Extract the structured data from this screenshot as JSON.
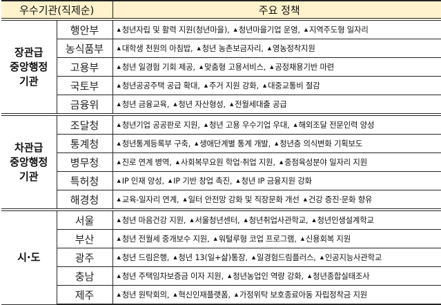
{
  "header": {
    "col1": "우수기관(직제순)",
    "col2": "주요 정책"
  },
  "bullet_icon": "triangle-up-icon",
  "groups": [
    {
      "category": [
        "장관급",
        "중앙행정",
        "기관"
      ],
      "rows": [
        {
          "agency": "행안부",
          "policies": [
            "청년자립 및 활력 지원(청년마을),",
            "청년마을기업 운영,",
            "지역주도형 일자리"
          ]
        },
        {
          "agency": "농식품부",
          "policies": [
            "대학생 천원의 아침밥,",
            "청년 농촌보금자리,",
            "영농정착지원"
          ]
        },
        {
          "agency": "고용부",
          "policies": [
            "청년 일경험 기회 제공,",
            "맞춤형 고용서비스,",
            "공정채용기반 마련"
          ]
        },
        {
          "agency": "국토부",
          "policies": [
            "청년공공주택 공급 확대,",
            "주거 지원 강화,",
            "대중교통비 절감"
          ]
        },
        {
          "agency": "금융위",
          "policies": [
            "청년 금융교육,",
            "청년 자산형성,",
            "전월세대출 공급"
          ]
        }
      ]
    },
    {
      "category": [
        "차관급",
        "중앙행정",
        "기관"
      ],
      "rows": [
        {
          "agency": "조달청",
          "policies": [
            "청년기업 공공판로 지원,",
            "청년 고용 우수기업 우대,",
            "해외조달 전문인력 양성"
          ]
        },
        {
          "agency": "통계청",
          "policies": [
            "청년통계등록부 구축,",
            "생애단계별 통계 개발,",
            "청년층 의식변화 기획보도"
          ]
        },
        {
          "agency": "병무청",
          "policies": [
            "진로 연계 병역,",
            "사회복무요원 학업·취업 지원,",
            "중점육성분야 일자리 지원"
          ]
        },
        {
          "agency": "특허청",
          "policies": [
            "IP 인재 양성,",
            "IP 기반 창업 촉진,",
            "청년 IP 금융지원 강화"
          ]
        },
        {
          "agency": "해경청",
          "policies": [
            "교육-일자리 연계,",
            "일터 안전망 강화 및 직장문화 개선",
            "건강 증진·문화 향유"
          ]
        }
      ]
    },
    {
      "category": [
        "시·도"
      ],
      "rows": [
        {
          "agency": "서울",
          "policies": [
            "청년 마음건강 지원,",
            "서울청년센터,",
            "청년취업사관학교,",
            "청년인생설계학교"
          ]
        },
        {
          "agency": "부산",
          "policies": [
            "청년 전월세 중개보수 지원,",
            "워털루형 코업 프로그램,",
            "신용회복 지원"
          ]
        },
        {
          "agency": "광주",
          "policies": [
            "청년 드림은행,",
            "청년 13(일+삶)통장,",
            "일경험드림플러스,",
            "인공지능사관학교"
          ]
        },
        {
          "agency": "충남",
          "policies": [
            "청년 주택임차보증금 이자 지원,",
            "청년농업인 역량 강화,",
            "청년종합실태조사"
          ]
        },
        {
          "agency": "제주",
          "policies": [
            "청년 원탁회의,",
            "혁신인재플랫폼,",
            "가정위탁 보호종료아동 자립정착금 지원"
          ]
        }
      ]
    }
  ]
}
